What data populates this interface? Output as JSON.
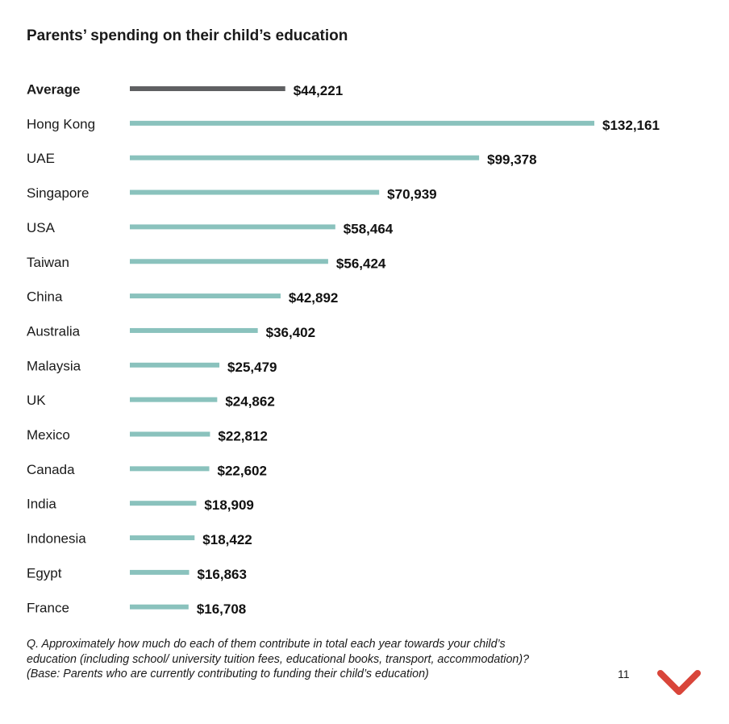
{
  "chart_data": {
    "type": "bar",
    "orientation": "horizontal",
    "title": "Parents’ spending on their child’s education",
    "categories": [
      "Average",
      "Hong Kong",
      "UAE",
      "Singapore",
      "USA",
      "Taiwan",
      "China",
      "Australia",
      "Malaysia",
      "UK",
      "Mexico",
      "Canada",
      "India",
      "Indonesia",
      "Egypt",
      "France"
    ],
    "values": [
      44221,
      132161,
      99378,
      70939,
      58464,
      56424,
      42892,
      36402,
      25479,
      24862,
      22812,
      22602,
      18909,
      18422,
      16863,
      16708
    ],
    "value_labels": [
      "$44,221",
      "$132,161",
      "$99,378",
      "$70,939",
      "$58,464",
      "$56,424",
      "$42,892",
      "$36,402",
      "$25,479",
      "$24,862",
      "$22,812",
      "$22,602",
      "$18,909",
      "$18,422",
      "$16,863",
      "$16,708"
    ],
    "highlight_category": "Average",
    "colors": {
      "highlight": "#5f6062",
      "bar": "#8ac2bd"
    },
    "xlim": [
      0,
      132161
    ],
    "grid": false,
    "legend": "none"
  },
  "footnote": {
    "lines": [
      "Q. Approximately how much do each of them contribute in total each year towards your child’s",
      "education (including school/ university tuition fees, educational books, transport, accommodation)?",
      "(Base: Parents who are currently contributing to funding their child’s education)"
    ]
  },
  "page_number": "11",
  "logo": {
    "icon": "chevron-down-icon",
    "color": "#d9453a"
  }
}
